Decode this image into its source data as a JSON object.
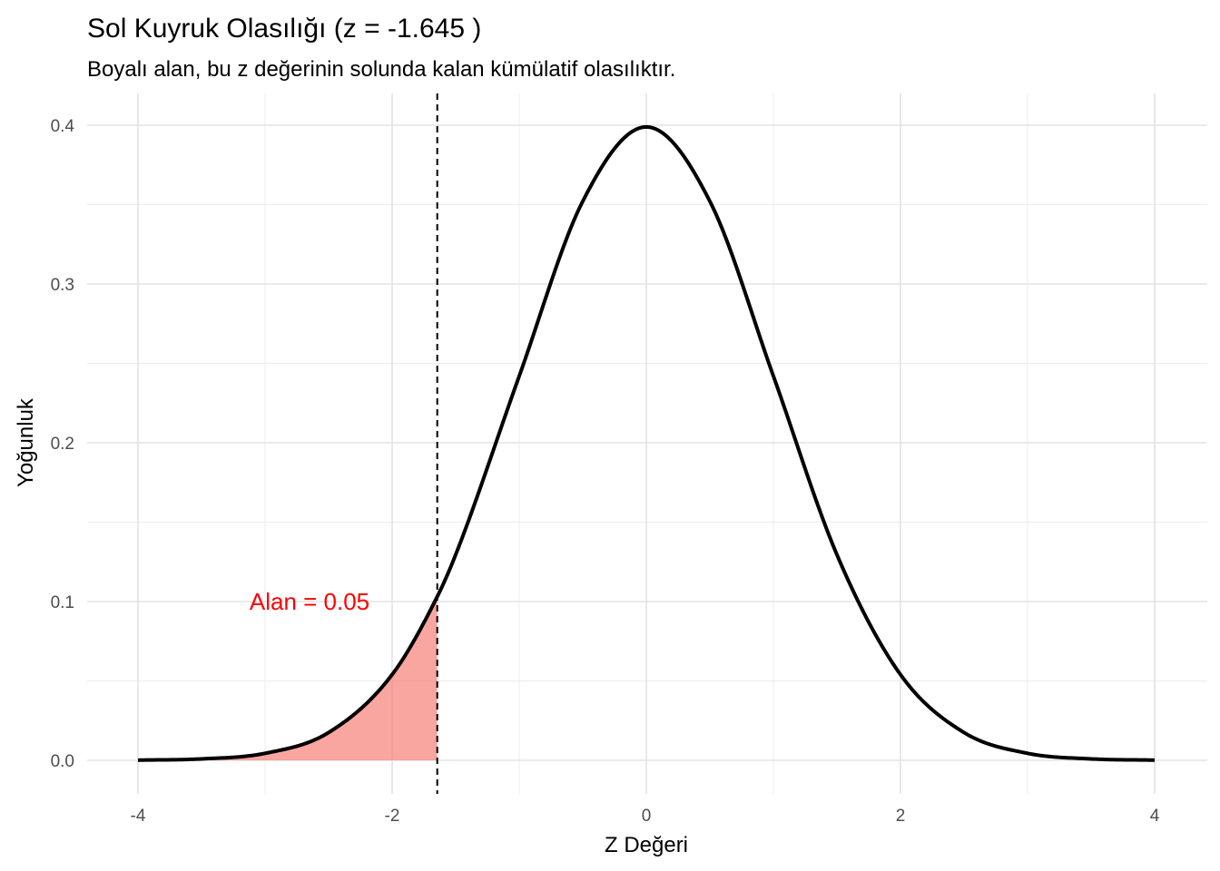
{
  "chart_data": {
    "type": "area",
    "title": "Sol Kuyruk Olasılığı (z = -1.645 )",
    "subtitle": "Boyalı alan, bu z değerinin solunda kalan kümülatif olasılıktır.",
    "xlabel": "Z Değeri",
    "ylabel": "Yoğunluk",
    "xlim": [
      -4,
      4
    ],
    "ylim": [
      0,
      0.4
    ],
    "x_ticks": [
      -4,
      -2,
      0,
      2,
      4
    ],
    "x_tick_labels": [
      "-4",
      "-2",
      "0",
      "2",
      "4"
    ],
    "y_ticks": [
      0.0,
      0.1,
      0.2,
      0.3,
      0.4
    ],
    "y_tick_labels": [
      "0.0",
      "0.1",
      "0.2",
      "0.3",
      "0.4"
    ],
    "grid": true,
    "series": [
      {
        "kind": "line",
        "x": [
          -4.0,
          -3.5,
          -3.0,
          -2.5,
          -2.0,
          -1.645,
          -1.5,
          -1.0,
          -0.5,
          0.0,
          0.5,
          1.0,
          1.5,
          2.0,
          2.5,
          3.0,
          3.5,
          4.0
        ],
        "y": [
          0.0001,
          0.0009,
          0.0044,
          0.0175,
          0.054,
          0.1031,
          0.1295,
          0.242,
          0.3521,
          0.3989,
          0.3521,
          0.242,
          0.1295,
          0.054,
          0.0175,
          0.0044,
          0.0009,
          0.0001
        ],
        "color": "#000000"
      },
      {
        "kind": "shaded_area",
        "x_from": -4,
        "x_to": -1.645,
        "color": "#F8766D"
      }
    ],
    "reference_line": {
      "x": -1.645,
      "style": "dashed",
      "color": "#000000"
    },
    "annotation": {
      "text": "Alan = 0.05",
      "x": -2.65,
      "y": 0.1,
      "color": "#FF0000"
    }
  }
}
